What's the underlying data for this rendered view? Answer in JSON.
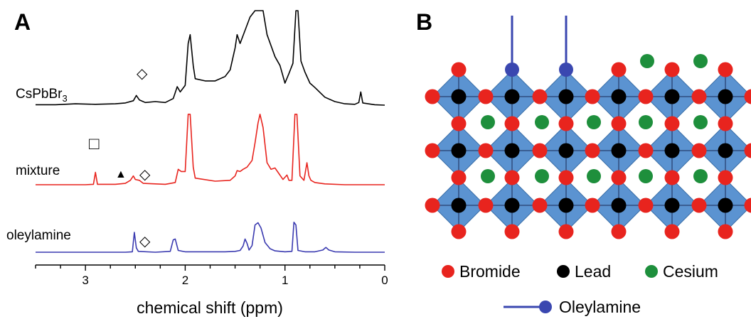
{
  "panels": {
    "a_label": "A",
    "b_label": "B"
  },
  "chart_data": {
    "type": "line",
    "xlabel": "chemical shift (ppm)",
    "xlim": [
      3.5,
      0
    ],
    "x_ticks": [
      "3",
      "2",
      "1",
      "0"
    ],
    "x_tick_values": [
      3,
      2,
      1,
      0
    ],
    "series": [
      {
        "name": "CsPbBr3",
        "color": "#000000",
        "points": [
          [
            3.5,
            0.01
          ],
          [
            3.3,
            0.01
          ],
          [
            3.1,
            0.03
          ],
          [
            2.9,
            0.02
          ],
          [
            2.7,
            0.03
          ],
          [
            2.6,
            0.05
          ],
          [
            2.52,
            0.1
          ],
          [
            2.49,
            0.22
          ],
          [
            2.46,
            0.12
          ],
          [
            2.4,
            0.06
          ],
          [
            2.3,
            0.08
          ],
          [
            2.2,
            0.06
          ],
          [
            2.12,
            0.15
          ],
          [
            2.08,
            0.42
          ],
          [
            2.05,
            0.3
          ],
          [
            2.0,
            0.45
          ],
          [
            1.97,
            1.4
          ],
          [
            1.95,
            1.6
          ],
          [
            1.92,
            0.9
          ],
          [
            1.9,
            0.6
          ],
          [
            1.8,
            0.55
          ],
          [
            1.7,
            0.55
          ],
          [
            1.6,
            0.65
          ],
          [
            1.55,
            0.8
          ],
          [
            1.52,
            1.1
          ],
          [
            1.5,
            1.3
          ],
          [
            1.48,
            1.6
          ],
          [
            1.45,
            1.4
          ],
          [
            1.4,
            1.7
          ],
          [
            1.35,
            2.0
          ],
          [
            1.3,
            2.3
          ],
          [
            1.26,
            2.6
          ],
          [
            1.22,
            2.3
          ],
          [
            1.18,
            1.6
          ],
          [
            1.1,
            1.1
          ],
          [
            1.05,
            0.9
          ],
          [
            1.0,
            0.5
          ],
          [
            0.96,
            0.72
          ],
          [
            0.92,
            0.95
          ],
          [
            0.89,
            2.5
          ],
          [
            0.87,
            2.5
          ],
          [
            0.84,
            1.0
          ],
          [
            0.8,
            0.75
          ],
          [
            0.75,
            0.5
          ],
          [
            0.7,
            0.4
          ],
          [
            0.6,
            0.18
          ],
          [
            0.5,
            0.08
          ],
          [
            0.4,
            0.03
          ],
          [
            0.3,
            0.02
          ],
          [
            0.26,
            0.06
          ],
          [
            0.24,
            0.3
          ],
          [
            0.22,
            0.05
          ],
          [
            0.1,
            0.01
          ],
          [
            0.0,
            0.0
          ]
        ]
      },
      {
        "name": "mixture",
        "color": "#e8241e",
        "points": [
          [
            3.5,
            0.0
          ],
          [
            3.0,
            0.0
          ],
          [
            2.92,
            0.01
          ],
          [
            2.9,
            0.28
          ],
          [
            2.88,
            0.01
          ],
          [
            2.7,
            0.01
          ],
          [
            2.6,
            0.03
          ],
          [
            2.55,
            0.1
          ],
          [
            2.52,
            0.2
          ],
          [
            2.5,
            0.12
          ],
          [
            2.46,
            0.1
          ],
          [
            2.42,
            0.03
          ],
          [
            2.2,
            0.01
          ],
          [
            2.1,
            0.05
          ],
          [
            2.07,
            0.35
          ],
          [
            2.04,
            0.3
          ],
          [
            2.0,
            0.3
          ],
          [
            1.97,
            1.6
          ],
          [
            1.95,
            1.6
          ],
          [
            1.92,
            0.4
          ],
          [
            1.9,
            0.15
          ],
          [
            1.7,
            0.08
          ],
          [
            1.55,
            0.1
          ],
          [
            1.5,
            0.2
          ],
          [
            1.48,
            0.32
          ],
          [
            1.45,
            0.3
          ],
          [
            1.42,
            0.35
          ],
          [
            1.38,
            0.4
          ],
          [
            1.33,
            0.55
          ],
          [
            1.3,
            0.95
          ],
          [
            1.27,
            1.4
          ],
          [
            1.25,
            1.6
          ],
          [
            1.22,
            1.3
          ],
          [
            1.18,
            0.5
          ],
          [
            1.14,
            0.35
          ],
          [
            1.1,
            0.38
          ],
          [
            1.06,
            0.25
          ],
          [
            1.02,
            0.12
          ],
          [
            0.98,
            0.22
          ],
          [
            0.96,
            0.1
          ],
          [
            0.93,
            0.1
          ],
          [
            0.9,
            1.6
          ],
          [
            0.88,
            1.6
          ],
          [
            0.85,
            0.2
          ],
          [
            0.81,
            0.1
          ],
          [
            0.78,
            0.5
          ],
          [
            0.76,
            0.2
          ],
          [
            0.74,
            0.1
          ],
          [
            0.7,
            0.05
          ],
          [
            0.6,
            0.02
          ],
          [
            0.4,
            0.0
          ],
          [
            0.0,
            0.0
          ]
        ]
      },
      {
        "name": "oleylamine",
        "color": "#3a3ab0",
        "points": [
          [
            3.5,
            0.0
          ],
          [
            2.6,
            0.0
          ],
          [
            2.53,
            0.01
          ],
          [
            2.51,
            0.45
          ],
          [
            2.49,
            0.1
          ],
          [
            2.47,
            0.02
          ],
          [
            2.3,
            0.0
          ],
          [
            2.15,
            0.02
          ],
          [
            2.12,
            0.28
          ],
          [
            2.1,
            0.3
          ],
          [
            2.07,
            0.04
          ],
          [
            2.0,
            0.01
          ],
          [
            1.6,
            0.01
          ],
          [
            1.5,
            0.02
          ],
          [
            1.45,
            0.04
          ],
          [
            1.42,
            0.14
          ],
          [
            1.4,
            0.3
          ],
          [
            1.38,
            0.2
          ],
          [
            1.36,
            0.05
          ],
          [
            1.33,
            0.15
          ],
          [
            1.3,
            0.62
          ],
          [
            1.27,
            0.67
          ],
          [
            1.24,
            0.55
          ],
          [
            1.2,
            0.22
          ],
          [
            1.15,
            0.08
          ],
          [
            1.1,
            0.03
          ],
          [
            1.0,
            0.01
          ],
          [
            0.93,
            0.02
          ],
          [
            0.91,
            0.68
          ],
          [
            0.89,
            0.62
          ],
          [
            0.87,
            0.04
          ],
          [
            0.8,
            0.01
          ],
          [
            0.7,
            0.01
          ],
          [
            0.62,
            0.05
          ],
          [
            0.59,
            0.11
          ],
          [
            0.56,
            0.05
          ],
          [
            0.5,
            0.01
          ],
          [
            0.3,
            0.0
          ],
          [
            0.0,
            0.0
          ]
        ]
      }
    ]
  },
  "trace_labels": {
    "cspbbr3_main": "CsPbBr",
    "cspbbr3_sub": "3",
    "mixture": "mixture",
    "oleylamine": "oleylamine"
  },
  "markers": {
    "diamond": "◇",
    "square": "□",
    "triangle": "▲"
  },
  "structure": {
    "colors": {
      "bromide": "#e8241e",
      "lead": "#000000",
      "cesium": "#1e8f3c",
      "octahedron": "#5b93d1",
      "oleylamine": "#3a47b0"
    }
  },
  "legend": {
    "bromide": "Bromide",
    "lead": "Lead",
    "cesium": "Cesium",
    "oleylamine": "Oleylamine"
  }
}
